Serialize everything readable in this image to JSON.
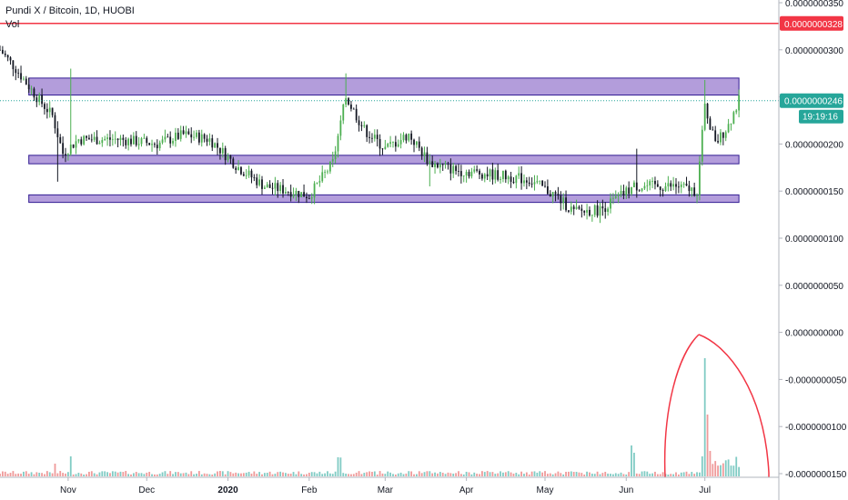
{
  "legend": {
    "title": "Pundi X / Bitcoin, 1D, HUOBI",
    "vol_label": "Vol"
  },
  "colors": {
    "up": "#26a69a",
    "up_candle": "#4caf50",
    "down": "#131722",
    "vol_up": "#80cbc4",
    "vol_down": "#ef9a9a",
    "zone_fill": "#b39ddb",
    "zone_stroke": "#311b92",
    "hline": "#f23645",
    "last_price": "#26a69a",
    "annotation": "#f23645"
  },
  "price_tags": {
    "hline": "0.0000000328",
    "last": "0.0000000246",
    "countdown": "19:19:16"
  },
  "chart_data": {
    "type": "candlestick",
    "title": "Pundi X / Bitcoin, 1D, HUOBI",
    "x_ticks": [
      "Nov",
      "Dec",
      "2020",
      "Feb",
      "Mar",
      "Apr",
      "May",
      "Jun",
      "Jul"
    ],
    "y_ticks": [
      "0.0000000350",
      "0.0000000300",
      "0.0000000250",
      "0.0000000200",
      "0.0000000150",
      "0.0000000100",
      "0.0000000050",
      "0.0000000000",
      "-0.0000000050",
      "-0.0000000100",
      "-0.0000000150"
    ],
    "ylim": [
      -1.55e-08,
      3.5e-08
    ],
    "x_start": "2019-10-06",
    "x_end": "2020-07-15",
    "horizontal_line": 3.28e-08,
    "last_price": 2.46e-08,
    "zones": [
      {
        "from": "2019-10-17",
        "to": "2020-07-14",
        "low": 2.52e-08,
        "high": 2.7e-08
      },
      {
        "from": "2019-10-17",
        "to": "2020-07-14",
        "low": 1.79e-08,
        "high": 1.88e-08
      },
      {
        "from": "2019-10-17",
        "to": "2020-07-14",
        "low": 1.38e-08,
        "high": 1.46e-08
      }
    ],
    "path": [
      {
        "date": "2019-10-06",
        "close": 3e-08
      },
      {
        "date": "2019-10-12",
        "close": 2.8e-08
      },
      {
        "date": "2019-10-20",
        "close": 2.5e-08
      },
      {
        "date": "2019-10-26",
        "close": 2.3e-08
      },
      {
        "date": "2019-10-30",
        "close": 1.9e-08
      },
      {
        "date": "2019-11-05",
        "close": 2.05e-08
      },
      {
        "date": "2019-11-20",
        "close": 2.05e-08
      },
      {
        "date": "2019-12-05",
        "close": 2e-08
      },
      {
        "date": "2019-12-15",
        "close": 2.1e-08
      },
      {
        "date": "2019-12-25",
        "close": 2.05e-08
      },
      {
        "date": "2020-01-05",
        "close": 1.75e-08
      },
      {
        "date": "2020-01-15",
        "close": 1.55e-08
      },
      {
        "date": "2020-01-25",
        "close": 1.5e-08
      },
      {
        "date": "2020-02-01",
        "close": 1.45e-08
      },
      {
        "date": "2020-02-10",
        "close": 1.8e-08
      },
      {
        "date": "2020-02-15",
        "close": 2.5e-08
      },
      {
        "date": "2020-02-22",
        "close": 2.15e-08
      },
      {
        "date": "2020-03-01",
        "close": 1.95e-08
      },
      {
        "date": "2020-03-10",
        "close": 2.1e-08
      },
      {
        "date": "2020-03-18",
        "close": 1.8e-08
      },
      {
        "date": "2020-03-28",
        "close": 1.72e-08
      },
      {
        "date": "2020-04-10",
        "close": 1.68e-08
      },
      {
        "date": "2020-04-25",
        "close": 1.62e-08
      },
      {
        "date": "2020-05-05",
        "close": 1.45e-08
      },
      {
        "date": "2020-05-12",
        "close": 1.28e-08
      },
      {
        "date": "2020-05-22",
        "close": 1.3e-08
      },
      {
        "date": "2020-05-30",
        "close": 1.45e-08
      },
      {
        "date": "2020-06-04",
        "close": 1.55e-08
      },
      {
        "date": "2020-06-10",
        "close": 1.55e-08
      },
      {
        "date": "2020-06-20",
        "close": 1.55e-08
      },
      {
        "date": "2020-06-28",
        "close": 1.5e-08
      },
      {
        "date": "2020-07-01",
        "close": 2.4e-08
      },
      {
        "date": "2020-07-05",
        "close": 2e-08
      },
      {
        "date": "2020-07-10",
        "close": 2.2e-08
      },
      {
        "date": "2020-07-14",
        "close": 2.46e-08
      }
    ],
    "annotation": "hand-drawn red circle around the July volume spike"
  }
}
